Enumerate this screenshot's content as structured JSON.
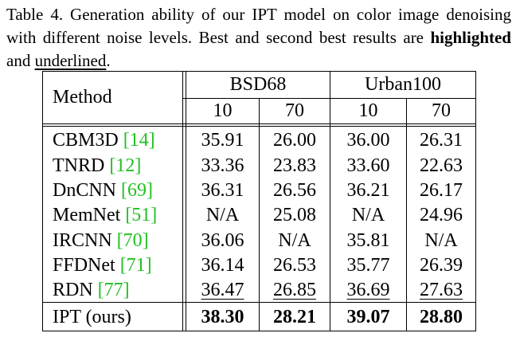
{
  "caption": {
    "part1": "Table 4. Generation ability of our IPT model on color image denoising with different noise levels. Best and second best results are ",
    "highlighted": "highlighted",
    "and": " and ",
    "underlined": "underlined",
    "end": "."
  },
  "header": {
    "method": "Method",
    "group1": "BSD68",
    "group2": "Urban100",
    "levels": [
      "10",
      "70",
      "10",
      "70"
    ]
  },
  "rows": [
    {
      "method": "CBM3D",
      "cite": "[14]",
      "values": [
        "35.91",
        "26.00",
        "36.00",
        "26.31"
      ]
    },
    {
      "method": "TNRD",
      "cite": "[12]",
      "values": [
        "33.36",
        "23.83",
        "33.60",
        "22.63"
      ]
    },
    {
      "method": "DnCNN",
      "cite": "[69]",
      "values": [
        "36.31",
        "26.56",
        "36.21",
        "26.17"
      ]
    },
    {
      "method": "MemNet",
      "cite": "[51]",
      "values": [
        "N/A",
        "25.08",
        "N/A",
        "24.96"
      ]
    },
    {
      "method": "IRCNN",
      "cite": "[70]",
      "values": [
        "36.06",
        "N/A",
        "35.81",
        "N/A"
      ]
    },
    {
      "method": "FFDNet",
      "cite": "[71]",
      "values": [
        "36.14",
        "26.53",
        "35.77",
        "26.39"
      ]
    },
    {
      "method": "RDN",
      "cite": "[77]",
      "values": [
        "36.47",
        "26.85",
        "36.69",
        "27.63"
      ]
    },
    {
      "method": "IPT (ours)",
      "cite": "",
      "values": [
        "38.30",
        "28.21",
        "39.07",
        "28.80"
      ]
    }
  ],
  "styles": {
    "underlined_row": 6,
    "bold_row": 7,
    "cite_color": "#22c022"
  }
}
